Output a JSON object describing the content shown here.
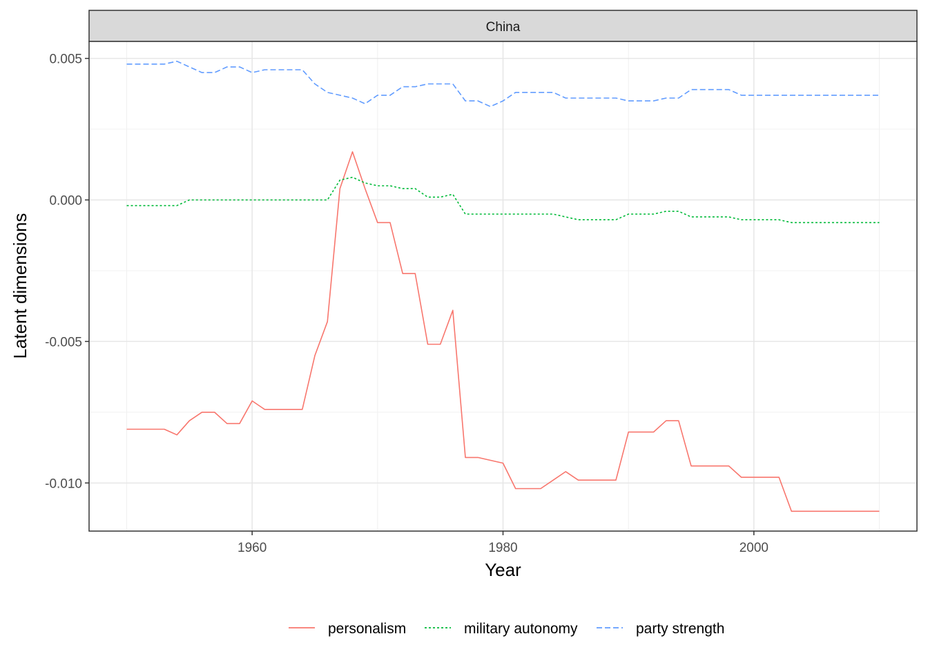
{
  "chart_data": {
    "type": "line",
    "facet_label": "China",
    "xlabel": "Year",
    "ylabel": "Latent dimensions",
    "xlim": [
      1947,
      2013
    ],
    "ylim": [
      -0.0117,
      0.0056
    ],
    "x_ticks": [
      1960,
      1980,
      2000
    ],
    "y_ticks": [
      0.005,
      0.0,
      -0.005,
      -0.01
    ],
    "y_tick_labels": [
      "0.005",
      "0.000",
      "-0.005",
      "-0.010"
    ],
    "grid": true,
    "legend_position": "bottom",
    "x": [
      1950,
      1951,
      1952,
      1953,
      1954,
      1955,
      1956,
      1957,
      1958,
      1959,
      1960,
      1961,
      1962,
      1963,
      1964,
      1965,
      1966,
      1967,
      1968,
      1969,
      1970,
      1971,
      1972,
      1973,
      1974,
      1975,
      1976,
      1977,
      1978,
      1979,
      1980,
      1981,
      1982,
      1983,
      1984,
      1985,
      1986,
      1987,
      1988,
      1989,
      1990,
      1991,
      1992,
      1993,
      1994,
      1995,
      1996,
      1997,
      1998,
      1999,
      2000,
      2001,
      2002,
      2003,
      2004,
      2005,
      2006,
      2007,
      2008,
      2009,
      2010
    ],
    "series": [
      {
        "name": "personalism",
        "color": "#F8766D",
        "dash": "solid",
        "values": [
          -0.0081,
          -0.0081,
          -0.0081,
          -0.0081,
          -0.0083,
          -0.0078,
          -0.0075,
          -0.0075,
          -0.0079,
          -0.0079,
          -0.0071,
          -0.0074,
          -0.0074,
          -0.0074,
          -0.0074,
          -0.0055,
          -0.0043,
          0.0004,
          0.0017,
          0.0004,
          -0.0008,
          -0.0008,
          -0.0026,
          -0.0026,
          -0.0051,
          -0.0051,
          -0.0039,
          -0.0091,
          -0.0091,
          -0.0092,
          -0.0093,
          -0.0102,
          -0.0102,
          -0.0102,
          -0.0099,
          -0.0096,
          -0.0099,
          -0.0099,
          -0.0099,
          -0.0099,
          -0.0082,
          -0.0082,
          -0.0082,
          -0.0078,
          -0.0078,
          -0.0094,
          -0.0094,
          -0.0094,
          -0.0094,
          -0.0098,
          -0.0098,
          -0.0098,
          -0.0098,
          -0.011,
          -0.011,
          -0.011,
          -0.011,
          -0.011,
          -0.011,
          -0.011,
          -0.011
        ]
      },
      {
        "name": "military autonomy",
        "color": "#00BA38",
        "dash": "dotted",
        "values": [
          -0.0002,
          -0.0002,
          -0.0002,
          -0.0002,
          -0.0002,
          0.0,
          0.0,
          0.0,
          0.0,
          0.0,
          0.0,
          0.0,
          0.0,
          0.0,
          0.0,
          0.0,
          0.0,
          0.0007,
          0.0008,
          0.0006,
          0.0005,
          0.0005,
          0.0004,
          0.0004,
          0.0001,
          0.0001,
          0.0002,
          -0.0005,
          -0.0005,
          -0.0005,
          -0.0005,
          -0.0005,
          -0.0005,
          -0.0005,
          -0.0005,
          -0.0006,
          -0.0007,
          -0.0007,
          -0.0007,
          -0.0007,
          -0.0005,
          -0.0005,
          -0.0005,
          -0.0004,
          -0.0004,
          -0.0006,
          -0.0006,
          -0.0006,
          -0.0006,
          -0.0007,
          -0.0007,
          -0.0007,
          -0.0007,
          -0.0008,
          -0.0008,
          -0.0008,
          -0.0008,
          -0.0008,
          -0.0008,
          -0.0008,
          -0.0008
        ]
      },
      {
        "name": "party strength",
        "color": "#619CFF",
        "dash": "dashed",
        "values": [
          0.0048,
          0.0048,
          0.0048,
          0.0048,
          0.0049,
          0.0047,
          0.0045,
          0.0045,
          0.0047,
          0.0047,
          0.0045,
          0.0046,
          0.0046,
          0.0046,
          0.0046,
          0.0041,
          0.0038,
          0.0037,
          0.0036,
          0.0034,
          0.0037,
          0.0037,
          0.004,
          0.004,
          0.0041,
          0.0041,
          0.0041,
          0.0035,
          0.0035,
          0.0033,
          0.0035,
          0.0038,
          0.0038,
          0.0038,
          0.0038,
          0.0036,
          0.0036,
          0.0036,
          0.0036,
          0.0036,
          0.0035,
          0.0035,
          0.0035,
          0.0036,
          0.0036,
          0.0039,
          0.0039,
          0.0039,
          0.0039,
          0.0037,
          0.0037,
          0.0037,
          0.0037,
          0.0037,
          0.0037,
          0.0037,
          0.0037,
          0.0037,
          0.0037,
          0.0037,
          0.0037
        ]
      }
    ]
  }
}
